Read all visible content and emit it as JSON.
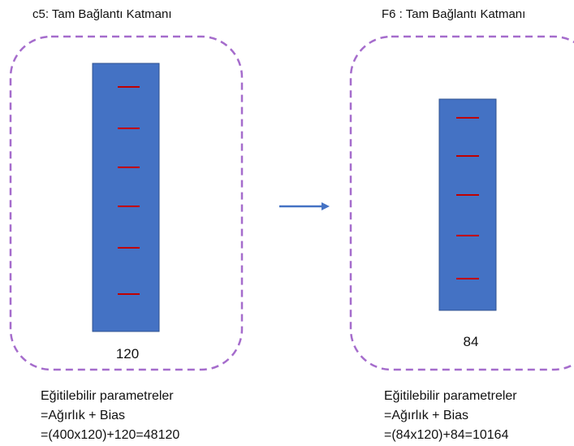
{
  "layers": [
    {
      "title": "c5: Tam Bağlantı Katmanı",
      "size": "120",
      "params": [
        "Eğitilebilir parametreler",
        "=Ağırlık + Bias",
        "=(400x120)+120=48120"
      ]
    },
    {
      "title": "F6 : Tam Bağlantı Katmanı",
      "size": "84",
      "params": [
        "Eğitilebilir parametreler",
        "=Ağırlık + Bias",
        "=(84x120)+84=10164"
      ]
    }
  ]
}
